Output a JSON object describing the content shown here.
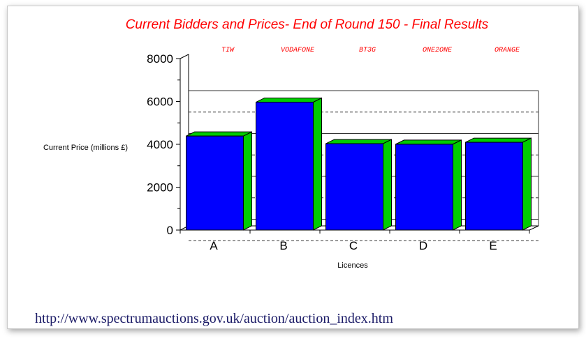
{
  "chart_data": {
    "type": "bar",
    "title": "Current Bidders and Prices- End of Round 150 - Final Results",
    "xlabel": "Licences",
    "ylabel": "Current Price (millions £)",
    "categories": [
      "A",
      "B",
      "C",
      "D",
      "E"
    ],
    "bidders": [
      "TIW",
      "VODAFONE",
      "BT3G",
      "ONE2ONE",
      "ORANGE"
    ],
    "values": [
      4385,
      5964,
      4030,
      4004,
      4095
    ],
    "ylim": [
      0,
      8000
    ],
    "yticks": [
      "0",
      "2000",
      "4000",
      "6000",
      "8000"
    ],
    "bar_color": "#0000ff",
    "bar_side_color": "#00cc00",
    "title_color": "#ff0000"
  },
  "source_url": "http://www.spectrumauctions.gov.uk/auction/auction_index.htm"
}
